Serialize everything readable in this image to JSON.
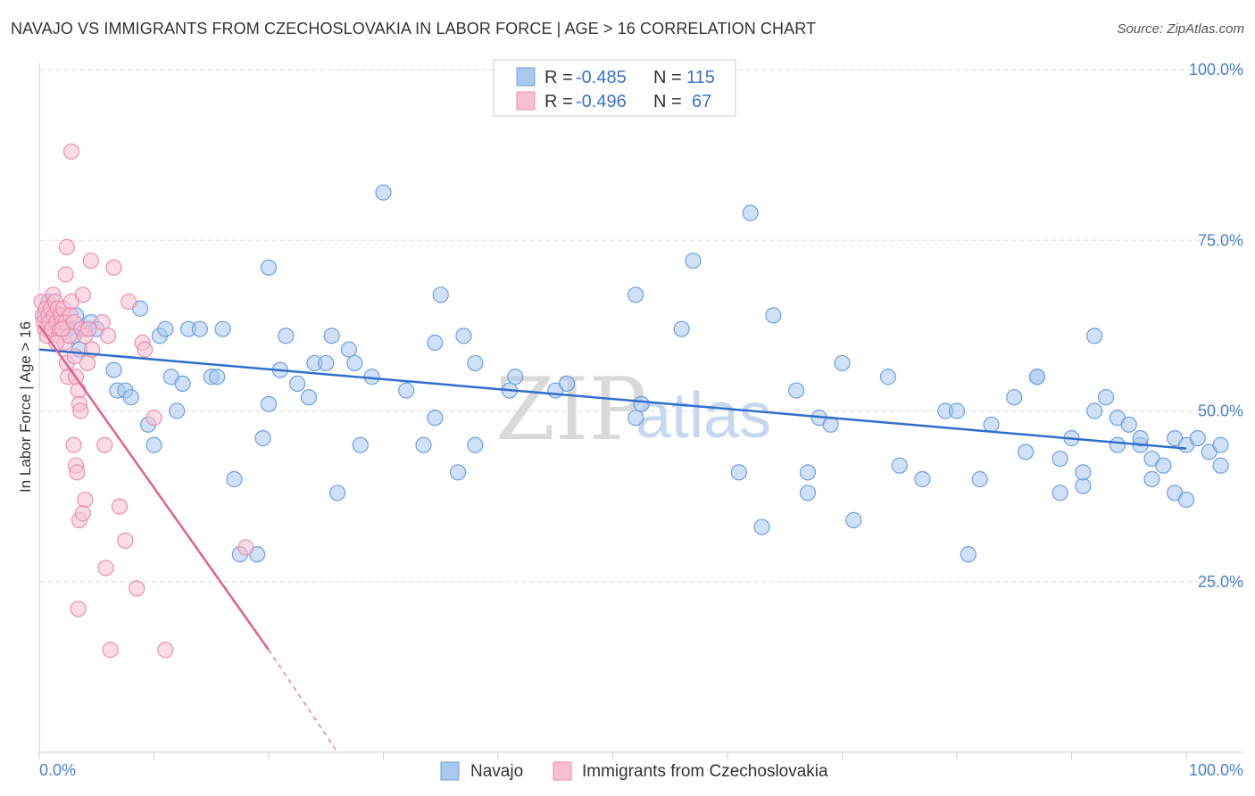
{
  "header": {
    "title": "NAVAJO VS IMMIGRANTS FROM CZECHOSLOVAKIA IN LABOR FORCE | AGE > 16 CORRELATION CHART",
    "source": "Source: ZipAtlas.com"
  },
  "watermark": {
    "zip": "ZIP",
    "atlas": "atlas"
  },
  "legend": {
    "rows": [
      {
        "r_label": "R =",
        "r_value": "-0.485",
        "n_label": "N =",
        "n_value": "115"
      },
      {
        "r_label": "R =",
        "r_value": "-0.496",
        "n_label": "N =",
        "n_value": "67"
      }
    ]
  },
  "bottom_legend": {
    "series1": "Navajo",
    "series2": "Immigrants from Czechoslovakia"
  },
  "colors": {
    "navajo_fill": "#a9c8f0",
    "navajo_stroke": "#6f9fdd",
    "navajo_line": "#2f6fcc",
    "czech_fill": "#f7bfd2",
    "czech_stroke": "#ea8fb0",
    "czech_line": "#e0608f",
    "axis_tick_text": "#4a7fcf",
    "grid": "#dddddd"
  },
  "chart_data": {
    "type": "scatter",
    "title": "NAVAJO VS IMMIGRANTS FROM CZECHOSLOVAKIA IN LABOR FORCE | AGE > 16 CORRELATION CHART",
    "xlabel": "",
    "ylabel": "In Labor Force | Age > 16",
    "xlim": [
      0,
      100
    ],
    "ylim": [
      0,
      100
    ],
    "x_tick_labels": [
      "0.0%",
      "100.0%"
    ],
    "y_ticks": [
      25,
      50,
      75,
      100
    ],
    "y_tick_labels": [
      "25.0%",
      "50.0%",
      "75.0%",
      "100.0%"
    ],
    "grid": true,
    "legend_position": "top-center",
    "series": [
      {
        "name": "Navajo",
        "R": -0.485,
        "N": 115,
        "trend": {
          "x": [
            0,
            100
          ],
          "y": [
            59.0,
            44.5
          ]
        },
        "points": [
          [
            0.5,
            64
          ],
          [
            0.8,
            66
          ],
          [
            1.0,
            65
          ],
          [
            1.2,
            63
          ],
          [
            1.5,
            62
          ],
          [
            1.8,
            64
          ],
          [
            2.0,
            63
          ],
          [
            2.5,
            62
          ],
          [
            3.0,
            61
          ],
          [
            3.2,
            64
          ],
          [
            3.5,
            59
          ],
          [
            4.0,
            62
          ],
          [
            4.5,
            63
          ],
          [
            5.0,
            62
          ],
          [
            6.5,
            56
          ],
          [
            6.8,
            53
          ],
          [
            7.5,
            53
          ],
          [
            8.0,
            52
          ],
          [
            8.8,
            65
          ],
          [
            9.5,
            48
          ],
          [
            10,
            45
          ],
          [
            10.5,
            61
          ],
          [
            11,
            62
          ],
          [
            11.5,
            55
          ],
          [
            12.5,
            54
          ],
          [
            12,
            50
          ],
          [
            13,
            62
          ],
          [
            14,
            62
          ],
          [
            15,
            55
          ],
          [
            15.5,
            55
          ],
          [
            16,
            62
          ],
          [
            17,
            40
          ],
          [
            17.5,
            29
          ],
          [
            19,
            29
          ],
          [
            20,
            71
          ],
          [
            19.5,
            46
          ],
          [
            20,
            51
          ],
          [
            21,
            56
          ],
          [
            21.5,
            61
          ],
          [
            22.5,
            54
          ],
          [
            23.5,
            52
          ],
          [
            24,
            57
          ],
          [
            25,
            57
          ],
          [
            25.5,
            61
          ],
          [
            26,
            38
          ],
          [
            27,
            59
          ],
          [
            27.5,
            57
          ],
          [
            28,
            45
          ],
          [
            29,
            55
          ],
          [
            30,
            82
          ],
          [
            32,
            53
          ],
          [
            33.5,
            45
          ],
          [
            34.5,
            49
          ],
          [
            34.5,
            60
          ],
          [
            35,
            67
          ],
          [
            36.5,
            41
          ],
          [
            37,
            61
          ],
          [
            38,
            45
          ],
          [
            38,
            57
          ],
          [
            41,
            53
          ],
          [
            41.5,
            55
          ],
          [
            45,
            53
          ],
          [
            46,
            54
          ],
          [
            52,
            67
          ],
          [
            52.5,
            51
          ],
          [
            52,
            49
          ],
          [
            56,
            62
          ],
          [
            57,
            72
          ],
          [
            61,
            41
          ],
          [
            62,
            79
          ],
          [
            63,
            33
          ],
          [
            64,
            64
          ],
          [
            66,
            53
          ],
          [
            67,
            41
          ],
          [
            67,
            38
          ],
          [
            68,
            49
          ],
          [
            69,
            48
          ],
          [
            70,
            57
          ],
          [
            71,
            34
          ],
          [
            74,
            55
          ],
          [
            75,
            42
          ],
          [
            77,
            40
          ],
          [
            79,
            50
          ],
          [
            80,
            50
          ],
          [
            81,
            29
          ],
          [
            82,
            40
          ],
          [
            83,
            48
          ],
          [
            85,
            52
          ],
          [
            86,
            44
          ],
          [
            87,
            55
          ],
          [
            87,
            55
          ],
          [
            89,
            38
          ],
          [
            89,
            43
          ],
          [
            90,
            46
          ],
          [
            91,
            39
          ],
          [
            91,
            41
          ],
          [
            92,
            61
          ],
          [
            92,
            50
          ],
          [
            93,
            52
          ],
          [
            94,
            49
          ],
          [
            94,
            45
          ],
          [
            95,
            48
          ],
          [
            96,
            45
          ],
          [
            96,
            46
          ],
          [
            97,
            40
          ],
          [
            97,
            43
          ],
          [
            98,
            42
          ],
          [
            99,
            46
          ],
          [
            99,
            38
          ],
          [
            100,
            37
          ],
          [
            100,
            45
          ],
          [
            101,
            46
          ],
          [
            102,
            44
          ],
          [
            103,
            42
          ],
          [
            103,
            45
          ]
        ]
      },
      {
        "name": "Immigrants from Czechoslovakia",
        "R": -0.496,
        "N": 67,
        "trend": {
          "x": [
            0,
            20
          ],
          "y": [
            62.5,
            15.0
          ]
        },
        "trend_extension": {
          "x": [
            20,
            26
          ],
          "y": [
            15.0,
            0
          ]
        },
        "points": [
          [
            0.2,
            66
          ],
          [
            0.3,
            64
          ],
          [
            0.4,
            63
          ],
          [
            0.5,
            62
          ],
          [
            0.6,
            65
          ],
          [
            0.7,
            61
          ],
          [
            0.8,
            64
          ],
          [
            0.9,
            63
          ],
          [
            1.0,
            65
          ],
          [
            1.1,
            62
          ],
          [
            1.2,
            67
          ],
          [
            1.3,
            64
          ],
          [
            1.4,
            66
          ],
          [
            1.5,
            63
          ],
          [
            1.6,
            65
          ],
          [
            1.7,
            61
          ],
          [
            1.8,
            62
          ],
          [
            1.9,
            64
          ],
          [
            2.0,
            63
          ],
          [
            2.1,
            65
          ],
          [
            2.2,
            60
          ],
          [
            2.3,
            63
          ],
          [
            2.4,
            57
          ],
          [
            2.5,
            55
          ],
          [
            2.6,
            61
          ],
          [
            2.7,
            64
          ],
          [
            2.8,
            66
          ],
          [
            3.0,
            63
          ],
          [
            3.1,
            58
          ],
          [
            3.2,
            55
          ],
          [
            3.4,
            53
          ],
          [
            3.5,
            51
          ],
          [
            3.6,
            50
          ],
          [
            3.0,
            45
          ],
          [
            3.2,
            42
          ],
          [
            3.3,
            41
          ],
          [
            3.5,
            34
          ],
          [
            3.4,
            21
          ],
          [
            3.7,
            62
          ],
          [
            3.8,
            67
          ],
          [
            4.0,
            61
          ],
          [
            4.2,
            57
          ],
          [
            4.3,
            62
          ],
          [
            4.5,
            72
          ],
          [
            4.0,
            37
          ],
          [
            3.8,
            35
          ],
          [
            4.6,
            59
          ],
          [
            2.3,
            70
          ],
          [
            2.4,
            74
          ],
          [
            2.8,
            88
          ],
          [
            5.5,
            63
          ],
          [
            5.7,
            45
          ],
          [
            5.8,
            27
          ],
          [
            6.0,
            61
          ],
          [
            6.2,
            15
          ],
          [
            6.5,
            71
          ],
          [
            7.0,
            36
          ],
          [
            7.5,
            31
          ],
          [
            7.8,
            66
          ],
          [
            8.5,
            24
          ],
          [
            9.0,
            60
          ],
          [
            9.2,
            59
          ],
          [
            10,
            49
          ],
          [
            11,
            15
          ],
          [
            18,
            30
          ],
          [
            2.0,
            62
          ],
          [
            1.5,
            60
          ]
        ]
      }
    ]
  }
}
